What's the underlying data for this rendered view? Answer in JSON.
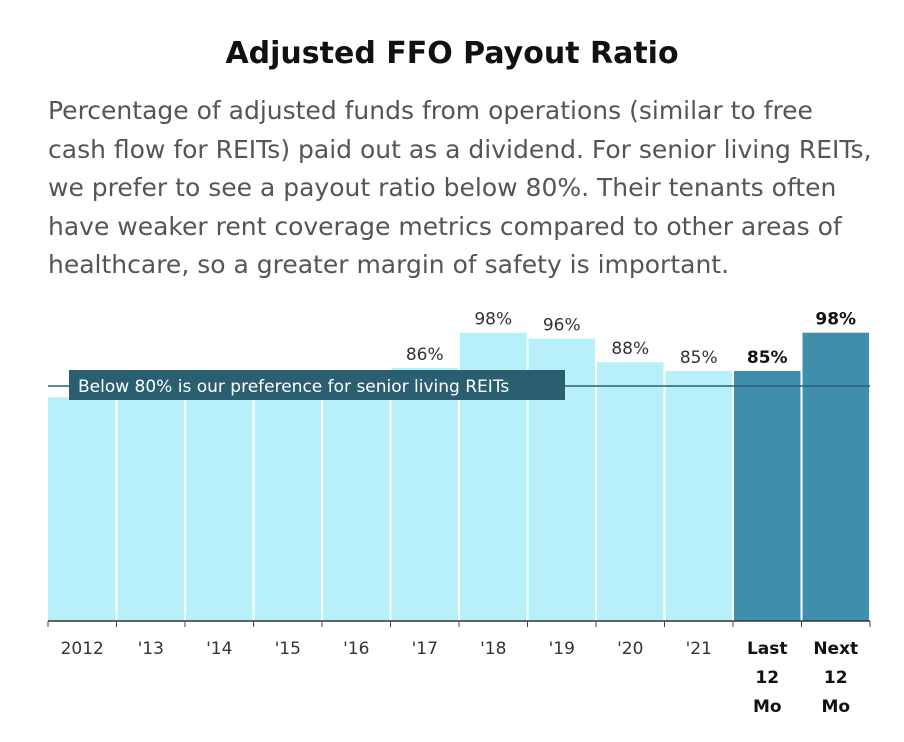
{
  "chart_data": {
    "type": "bar",
    "title": "Adjusted FFO Payout Ratio",
    "subtitle": "Percentage of adjusted funds from operations (similar to free cash flow for REITs) paid out as a dividend. For senior living REITs, we prefer to see a payout ratio below 80%. Their tenants often have weaker rent coverage metrics compared to other areas of healthcare, so a greater margin of safety is important.",
    "categories": [
      "2012",
      "'13",
      "'14",
      "'15",
      "'16",
      "'17",
      "'18",
      "'19",
      "'20",
      "'21",
      "Last 12 Mo",
      "Next 12 Mo"
    ],
    "category_lines": [
      [
        "2012"
      ],
      [
        "'13"
      ],
      [
        "'14"
      ],
      [
        "'15"
      ],
      [
        "'16"
      ],
      [
        "'17"
      ],
      [
        "'18"
      ],
      [
        "'19"
      ],
      [
        "'20"
      ],
      [
        "'21"
      ],
      [
        "Last",
        "12",
        "Mo"
      ],
      [
        "Next",
        "12",
        "Mo"
      ]
    ],
    "values": [
      76,
      78,
      78,
      78,
      78,
      86,
      98,
      96,
      88,
      85,
      85,
      98
    ],
    "value_labels": [
      "",
      "",
      "",
      "",
      "",
      "86%",
      "98%",
      "96%",
      "88%",
      "85%",
      "85%",
      "98%"
    ],
    "highlight": [
      false,
      false,
      false,
      false,
      false,
      false,
      false,
      false,
      false,
      false,
      true,
      true
    ],
    "ylim": [
      0,
      103
    ],
    "reference_line": {
      "value": 80,
      "label": "Below 80% is our preference for senior living REITs"
    },
    "colors": {
      "bar": "#b7f0f8",
      "bar_highlight": "#3f8fac",
      "reference_label_bg": "#2a5f72",
      "reference_line": "#2a5f72"
    },
    "grid": false,
    "legend": "none",
    "xlabel": "",
    "ylabel": ""
  }
}
